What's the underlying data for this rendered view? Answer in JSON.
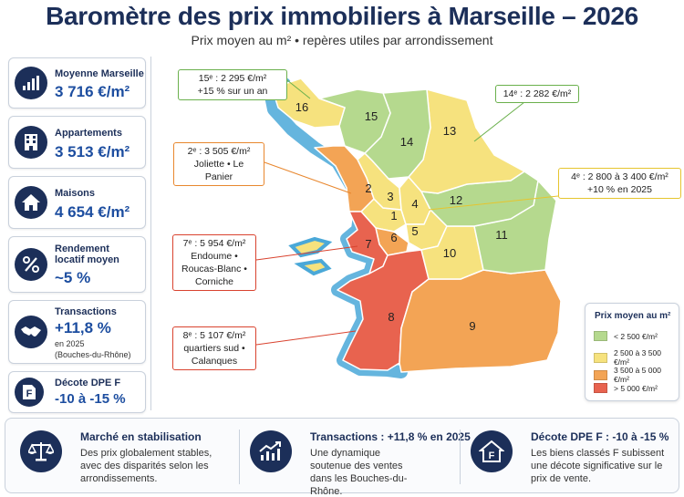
{
  "header": {
    "title": "Baromètre des prix immobiliers à Marseille – 2026",
    "subtitle": "Prix moyen au m² • repères utiles par arrondissement"
  },
  "stats": [
    {
      "icon": "bar-chart-icon",
      "label": "Moyenne Marseille",
      "value": "3 716 €/m²"
    },
    {
      "icon": "building-icon",
      "label": "Appartements",
      "value": "3 513 €/m²"
    },
    {
      "icon": "house-icon",
      "label": "Maisons",
      "value": "4 654 €/m²"
    },
    {
      "icon": "percent-icon",
      "label": "Rendement locatif moyen",
      "value": "~5 %"
    },
    {
      "icon": "handshake-icon",
      "label": "Transactions",
      "value": "+11,8 %",
      "sub1": "en 2025",
      "sub2": "(Bouches-du-Rhône)"
    },
    {
      "icon": "energy-label-f-icon",
      "label": "Décote DPE F",
      "value": "-10 à -15 %"
    }
  ],
  "map": {
    "colors": {
      "green": "#b5d98e",
      "yellow": "#f6e27e",
      "orange": "#f3a455",
      "red": "#e8634f",
      "sea": "#4aa8d8"
    },
    "districts": [
      {
        "num": "1",
        "band": "yellow"
      },
      {
        "num": "2",
        "band": "orange"
      },
      {
        "num": "3",
        "band": "yellow"
      },
      {
        "num": "4",
        "band": "yellow"
      },
      {
        "num": "5",
        "band": "yellow"
      },
      {
        "num": "6",
        "band": "orange"
      },
      {
        "num": "7",
        "band": "red"
      },
      {
        "num": "8",
        "band": "red"
      },
      {
        "num": "9",
        "band": "orange"
      },
      {
        "num": "10",
        "band": "yellow"
      },
      {
        "num": "11",
        "band": "green"
      },
      {
        "num": "12",
        "band": "green"
      },
      {
        "num": "13",
        "band": "yellow"
      },
      {
        "num": "14",
        "band": "green"
      },
      {
        "num": "15",
        "band": "green"
      },
      {
        "num": "16",
        "band": "yellow"
      }
    ]
  },
  "callouts": {
    "c15": {
      "line1": "15ᵉ : 2 295 €/m²",
      "line2": "+15 % sur un an",
      "color": "#6ab04c"
    },
    "c14": {
      "line1": "14ᵉ : 2 282 €/m²",
      "color": "#6ab04c"
    },
    "c2": {
      "line1": "2ᵉ : 3 505 €/m²",
      "line2": "Joliette • Le Panier",
      "color": "#e8872e"
    },
    "c4": {
      "line1": "4ᵉ : 2 800 à 3 400 €/m²",
      "line2": "+10 % en 2025",
      "color": "#e6c52e"
    },
    "c7": {
      "line1": "7ᵉ : 5 954 €/m²",
      "line2": "Endoume •",
      "line3": "Roucas-Blanc •",
      "line4": "Corniche",
      "color": "#d9432f"
    },
    "c8": {
      "line1": "8ᵉ : 5 107 €/m²",
      "line2": "quartiers sud •",
      "line3": "Calanques",
      "color": "#d9432f"
    }
  },
  "legend": {
    "title": "Prix moyen au m²",
    "items": [
      {
        "label": "< 2 500 €/m²",
        "color": "#b5d98e"
      },
      {
        "label": "2 500 à 3 500 €/m²",
        "color": "#f6e27e"
      },
      {
        "label": "3 500 à 5 000 €/m²",
        "color": "#f3a455"
      },
      {
        "label": "> 5 000 €/m²",
        "color": "#e8634f"
      }
    ]
  },
  "bottom": [
    {
      "icon": "scale-icon",
      "title": "Marché en stabilisation",
      "desc": "Des prix globalement stables, avec des disparités selon les arrondissements."
    },
    {
      "icon": "trend-up-icon",
      "title": "Transactions : +11,8 % en 2025",
      "desc": "Une dynamique soutenue des ventes dans les Bouches-du-Rhône."
    },
    {
      "icon": "house-f-icon",
      "title": "Décote DPE F : -10 à -15 %",
      "desc": "Les biens classés F subissent une décote significative sur le prix de vente."
    }
  ]
}
